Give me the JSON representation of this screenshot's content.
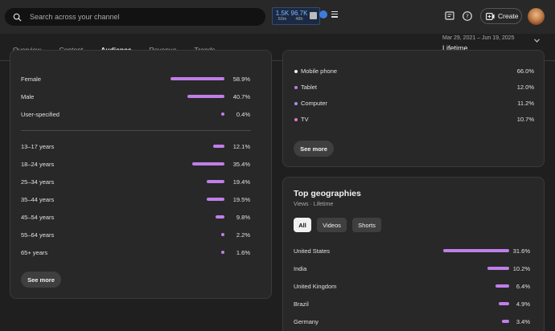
{
  "search": {
    "placeholder": "Search across your channel"
  },
  "realtime": {
    "views": "1.5K",
    "views_unit": "60m",
    "subs": "96.7K",
    "subs_unit": "48h"
  },
  "header": {
    "create_label": "Create"
  },
  "tabs": [
    {
      "label": "Overview"
    },
    {
      "label": "Content"
    },
    {
      "label": "Audience"
    },
    {
      "label": "Revenue"
    },
    {
      "label": "Trends"
    }
  ],
  "date": {
    "range": "Mar 29, 2021 – Jun 19, 2025",
    "period": "Lifetime"
  },
  "gender": [
    {
      "label": "Female",
      "pct": "58.9%",
      "value": 58.9
    },
    {
      "label": "Male",
      "pct": "40.7%",
      "value": 40.7
    },
    {
      "label": "User-specified",
      "pct": "0.4%",
      "value": 0.4
    }
  ],
  "age": [
    {
      "label": "13–17 years",
      "pct": "12.1%",
      "value": 12.1
    },
    {
      "label": "18–24 years",
      "pct": "35.4%",
      "value": 35.4
    },
    {
      "label": "25–34 years",
      "pct": "19.4%",
      "value": 19.4
    },
    {
      "label": "35–44 years",
      "pct": "19.5%",
      "value": 19.5
    },
    {
      "label": "45–54 years",
      "pct": "9.8%",
      "value": 9.8
    },
    {
      "label": "55–64 years",
      "pct": "2.2%",
      "value": 2.2
    },
    {
      "label": "65+ years",
      "pct": "1.6%",
      "value": 1.6
    }
  ],
  "left_card": {
    "see_more": "See more"
  },
  "devices": [
    {
      "label": "Mobile phone",
      "pct": "66.0%",
      "color": "#f1f1f1"
    },
    {
      "label": "Tablet",
      "pct": "12.0%",
      "color": "#c07ee8"
    },
    {
      "label": "Computer",
      "pct": "11.2%",
      "color": "#a98ef5"
    },
    {
      "label": "TV",
      "pct": "10.7%",
      "color": "#e478c4"
    }
  ],
  "device_card": {
    "see_more": "See more"
  },
  "geo": {
    "title": "Top geographies",
    "subtitle": "Views · Lifetime",
    "chips": [
      "All",
      "Videos",
      "Shorts"
    ],
    "rows": [
      {
        "label": "United States",
        "pct": "31.6%",
        "value": 31.6
      },
      {
        "label": "India",
        "pct": "10.2%",
        "value": 10.2
      },
      {
        "label": "United Kingdom",
        "pct": "6.4%",
        "value": 6.4
      },
      {
        "label": "Brazil",
        "pct": "4.9%",
        "value": 4.9
      },
      {
        "label": "Germany",
        "pct": "3.4%",
        "value": 3.4
      }
    ]
  },
  "colors": {
    "bar": "#c07ee8",
    "accent": "#8ab4f8"
  }
}
